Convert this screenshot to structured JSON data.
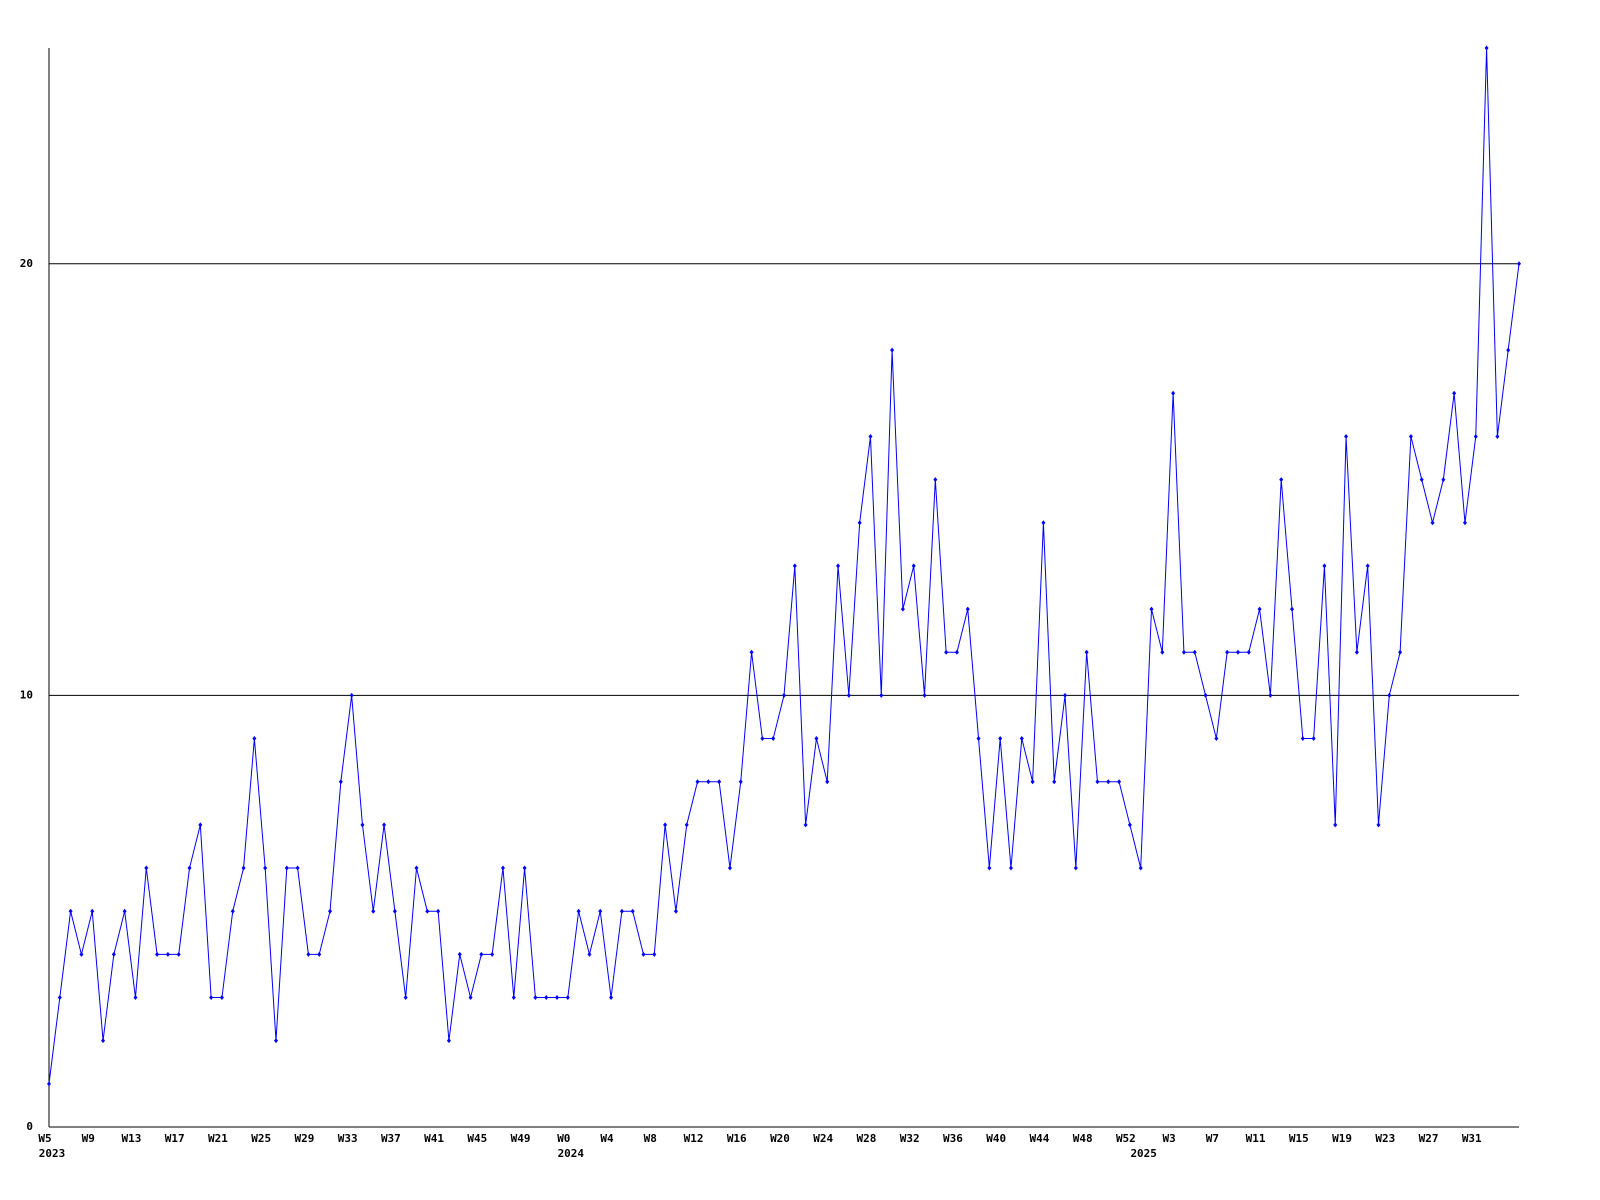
{
  "chart_data": {
    "type": "line",
    "categories": [
      "W5",
      null,
      null,
      null,
      "W9",
      null,
      null,
      null,
      "W13",
      null,
      null,
      null,
      "W17",
      null,
      null,
      null,
      "W21",
      null,
      null,
      null,
      "W25",
      null,
      null,
      null,
      "W29",
      null,
      null,
      null,
      "W33",
      null,
      null,
      null,
      "W37",
      null,
      null,
      null,
      "W41",
      null,
      null,
      null,
      "W45",
      null,
      null,
      null,
      "W49",
      null,
      null,
      null,
      "W0",
      null,
      null,
      null,
      "W4",
      null,
      null,
      null,
      "W8",
      null,
      null,
      null,
      "W12",
      null,
      null,
      null,
      "W16",
      null,
      null,
      null,
      "W20",
      null,
      null,
      null,
      "W24",
      null,
      null,
      null,
      "W28",
      null,
      null,
      null,
      "W32",
      null,
      null,
      null,
      "W36",
      null,
      null,
      null,
      "W40",
      null,
      null,
      null,
      "W44",
      null,
      null,
      null,
      "W48",
      null,
      null,
      null,
      "W52",
      null,
      null,
      null,
      "W3",
      null,
      null,
      null,
      "W7",
      null,
      null,
      null,
      "W11",
      null,
      null,
      null,
      "W15",
      null,
      null,
      null,
      "W19",
      null,
      null,
      null,
      "W23",
      null,
      null,
      null,
      "W27",
      null,
      null,
      null,
      "W31",
      null,
      null,
      null,
      null
    ],
    "year_labels": [
      {
        "index": 0,
        "label": "2023"
      },
      {
        "index": 48,
        "label": "2024"
      },
      {
        "index": 101,
        "label": "2025"
      }
    ],
    "values": [
      1,
      3,
      5,
      4,
      5,
      2,
      4,
      5,
      3,
      6,
      4,
      4,
      4,
      6,
      7,
      3,
      3,
      5,
      6,
      9,
      6,
      2,
      6,
      6,
      4,
      4,
      5,
      8,
      10,
      7,
      5,
      7,
      5,
      3,
      6,
      5,
      5,
      2,
      4,
      3,
      4,
      4,
      6,
      3,
      6,
      3,
      3,
      3,
      3,
      5,
      4,
      5,
      3,
      5,
      5,
      4,
      4,
      7,
      5,
      7,
      8,
      8,
      8,
      6,
      8,
      11,
      9,
      9,
      10,
      13,
      7,
      9,
      8,
      13,
      10,
      14,
      16,
      10,
      18,
      12,
      13,
      10,
      15,
      11,
      11,
      12,
      9,
      6,
      9,
      6,
      9,
      8,
      14,
      8,
      10,
      6,
      11,
      8,
      8,
      8,
      7,
      6,
      12,
      11,
      17,
      11,
      11,
      10,
      9,
      11,
      11,
      11,
      12,
      10,
      15,
      12,
      9,
      9,
      13,
      7,
      16,
      11,
      13,
      7,
      10,
      11,
      16,
      15,
      14,
      15,
      17,
      14,
      16,
      25,
      16,
      18,
      20
    ],
    "color": "#0000ff",
    "ylim": [
      0,
      25
    ],
    "yticks": [
      0,
      10,
      20
    ],
    "grid": true
  }
}
